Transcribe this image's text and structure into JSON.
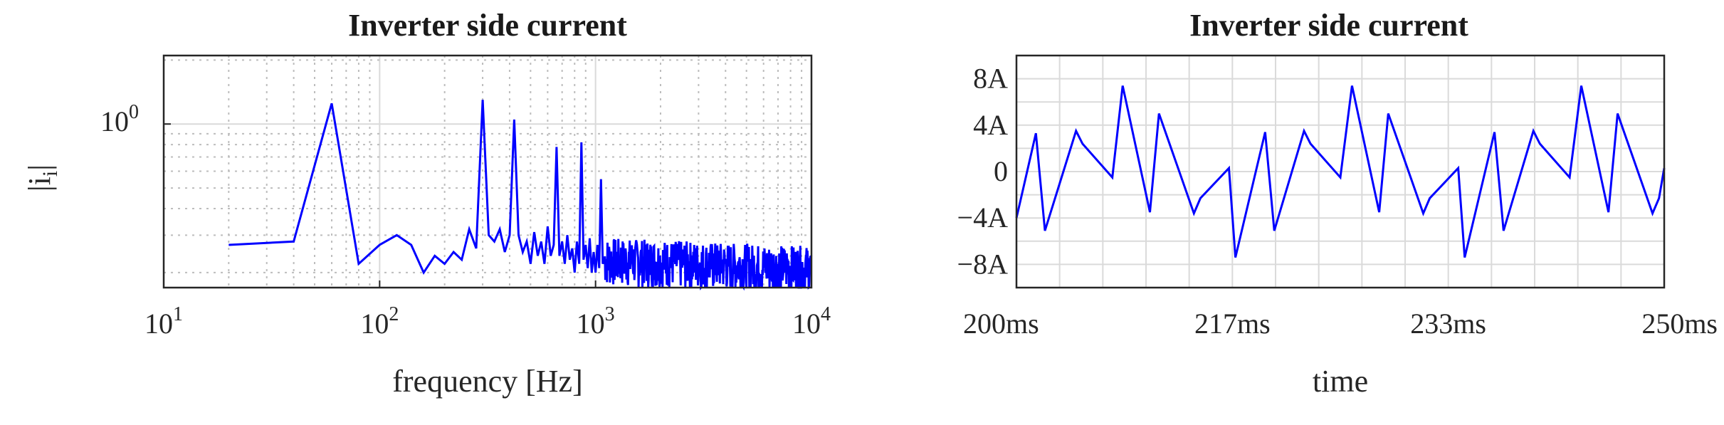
{
  "chart_data": [
    {
      "type": "line",
      "title": "Inverter side current",
      "xlabel": "frequency [Hz]",
      "ylabel": "|i",
      "ylabel_sub": "i",
      "ylabel_end": "|",
      "x_scale": "log",
      "y_scale": "log",
      "xlim": [
        10,
        10000
      ],
      "ylim": [
        0.17,
        2.1
      ],
      "grid": true,
      "x_ticks": [
        {
          "base": "10",
          "exp": "1",
          "value": 10
        },
        {
          "base": "10",
          "exp": "2",
          "value": 100
        },
        {
          "base": "10",
          "exp": "3",
          "value": 1000
        },
        {
          "base": "10",
          "exp": "4",
          "value": 10000
        }
      ],
      "y_ticks": [
        {
          "base": "10",
          "exp": "0",
          "value": 1
        }
      ],
      "color": "#0000ff",
      "series": [
        {
          "points": [
            [
              20,
              0.27
            ],
            [
              40,
              0.28
            ],
            [
              60,
              1.25
            ],
            [
              80,
              0.22
            ],
            [
              100,
              0.27
            ],
            [
              120,
              0.3
            ],
            [
              140,
              0.27
            ],
            [
              160,
              0.2
            ],
            [
              180,
              0.24
            ],
            [
              200,
              0.22
            ],
            [
              220,
              0.25
            ],
            [
              240,
              0.23
            ],
            [
              260,
              0.32
            ],
            [
              280,
              0.26
            ],
            [
              300,
              1.3
            ],
            [
              320,
              0.3
            ],
            [
              340,
              0.28
            ],
            [
              360,
              0.32
            ],
            [
              380,
              0.25
            ],
            [
              400,
              0.3
            ],
            [
              420,
              1.05
            ],
            [
              440,
              0.3
            ],
            [
              460,
              0.25
            ],
            [
              480,
              0.28
            ],
            [
              500,
              0.22
            ],
            [
              520,
              0.31
            ],
            [
              540,
              0.24
            ],
            [
              560,
              0.28
            ],
            [
              580,
              0.22
            ],
            [
              600,
              0.33
            ],
            [
              620,
              0.24
            ],
            [
              640,
              0.27
            ],
            [
              660,
              0.78
            ],
            [
              680,
              0.24
            ],
            [
              700,
              0.28
            ],
            [
              720,
              0.22
            ],
            [
              740,
              0.3
            ],
            [
              760,
              0.23
            ],
            [
              780,
              0.26
            ],
            [
              800,
              0.2
            ],
            [
              820,
              0.28
            ],
            [
              840,
              0.22
            ],
            [
              860,
              0.82
            ],
            [
              880,
              0.23
            ],
            [
              900,
              0.27
            ],
            [
              920,
              0.21
            ],
            [
              940,
              0.29
            ],
            [
              960,
              0.2
            ],
            [
              980,
              0.25
            ],
            [
              1000,
              0.2
            ],
            [
              1020,
              0.27
            ],
            [
              1040,
              0.21
            ],
            [
              1060,
              0.55
            ],
            [
              1080,
              0.22
            ]
          ]
        }
      ]
    },
    {
      "type": "line",
      "title": "Inverter side current",
      "xlabel": "time",
      "ylabel": "",
      "xlim": [
        200,
        250
      ],
      "ylim": [
        -10,
        10
      ],
      "grid": true,
      "x_ticks": [
        {
          "label": "200ms",
          "value": 200
        },
        {
          "label": "217ms",
          "value": 216.67
        },
        {
          "label": "233ms",
          "value": 233.33
        },
        {
          "label": "250ms",
          "value": 250
        }
      ],
      "y_ticks": [
        {
          "label": "8A",
          "value": 8
        },
        {
          "label": "4A",
          "value": 4
        },
        {
          "label": "0",
          "value": 0
        },
        {
          "label": "−4A",
          "value": -4
        },
        {
          "label": "−8A",
          "value": -8
        }
      ],
      "color": "#0000ff",
      "series": [
        {
          "points": [
            [
              200,
              -4
            ],
            [
              201.5,
              3.3
            ],
            [
              202.2,
              -5.1
            ],
            [
              204.6,
              3.5
            ],
            [
              205.1,
              2.4
            ],
            [
              207.4,
              -0.5
            ],
            [
              208.2,
              7.4
            ],
            [
              210.3,
              -3.5
            ],
            [
              211,
              5
            ],
            [
              213.7,
              -3.6
            ],
            [
              214.2,
              -2.3
            ],
            [
              216.4,
              0.3
            ],
            [
              216.9,
              -7.4
            ],
            [
              219.2,
              3.4
            ],
            [
              219.9,
              -5.1
            ],
            [
              222.2,
              3.5
            ],
            [
              222.7,
              2.4
            ],
            [
              225.0,
              -0.5
            ],
            [
              225.9,
              7.4
            ],
            [
              228,
              -3.5
            ],
            [
              228.7,
              5
            ],
            [
              231.4,
              -3.6
            ],
            [
              231.9,
              -2.3
            ],
            [
              234.1,
              0.3
            ],
            [
              234.6,
              -7.4
            ],
            [
              236.9,
              3.4
            ],
            [
              237.6,
              -5.1
            ],
            [
              239.9,
              3.5
            ],
            [
              240.4,
              2.4
            ],
            [
              242.7,
              -0.5
            ],
            [
              243.6,
              7.4
            ],
            [
              245.7,
              -3.5
            ],
            [
              246.4,
              5
            ],
            [
              249.1,
              -3.6
            ],
            [
              249.6,
              -2.3
            ],
            [
              251.8,
              0.3
            ]
          ]
        }
      ]
    }
  ]
}
